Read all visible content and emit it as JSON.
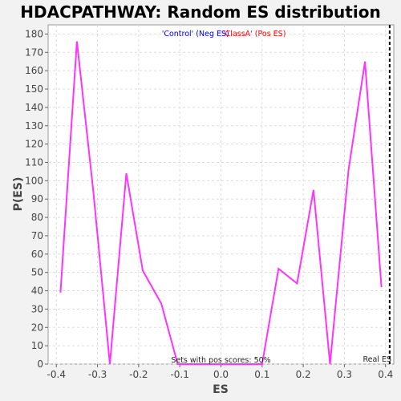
{
  "chart_data": {
    "type": "line",
    "title": "HDACPATHWAY: Random ES distribution",
    "xlabel": "ES",
    "ylabel": "P(ES)",
    "xlim": [
      -0.42,
      0.42
    ],
    "ylim": [
      0,
      185
    ],
    "xticks": [
      -0.4,
      -0.3,
      -0.2,
      -0.1,
      0.0,
      0.1,
      0.2,
      0.3,
      0.4
    ],
    "xtick_labels": [
      "-0.4",
      "-0.3",
      "-0.2",
      "-0.1",
      "0.0",
      "0.1",
      "0.2",
      "0.3",
      "0.4"
    ],
    "yticks": [
      0,
      10,
      20,
      30,
      40,
      50,
      60,
      70,
      80,
      90,
      100,
      110,
      120,
      130,
      140,
      150,
      160,
      170,
      180
    ],
    "ytick_labels": [
      "0",
      "10",
      "20",
      "30",
      "40",
      "50",
      "60",
      "70",
      "80",
      "90",
      "100",
      "110",
      "120",
      "130",
      "140",
      "150",
      "160",
      "170",
      "180"
    ],
    "grid": true,
    "series": [
      {
        "name": "Random ES distribution",
        "color": "#ff33ff",
        "x": [
          -0.39,
          -0.35,
          -0.31,
          -0.27,
          -0.23,
          -0.19,
          -0.145,
          -0.105,
          -0.06,
          -0.02,
          0.02,
          0.06,
          0.1,
          0.14,
          0.185,
          0.225,
          0.265,
          0.31,
          0.35,
          0.39
        ],
        "y": [
          39,
          176,
          94,
          0,
          104,
          51,
          33,
          0,
          0,
          0,
          0,
          0,
          0,
          52,
          44,
          95,
          0,
          106,
          165,
          42
        ]
      }
    ],
    "real_es": 0.41,
    "real_es_label": "Real ES",
    "neg_label": "'Control' (Neg ES)",
    "pos_label": "'ClassA' (Pos ES)",
    "neg_color": "#0000ff",
    "pos_color": "#ff0000",
    "footer": "Sets with pos scores: 50%"
  }
}
